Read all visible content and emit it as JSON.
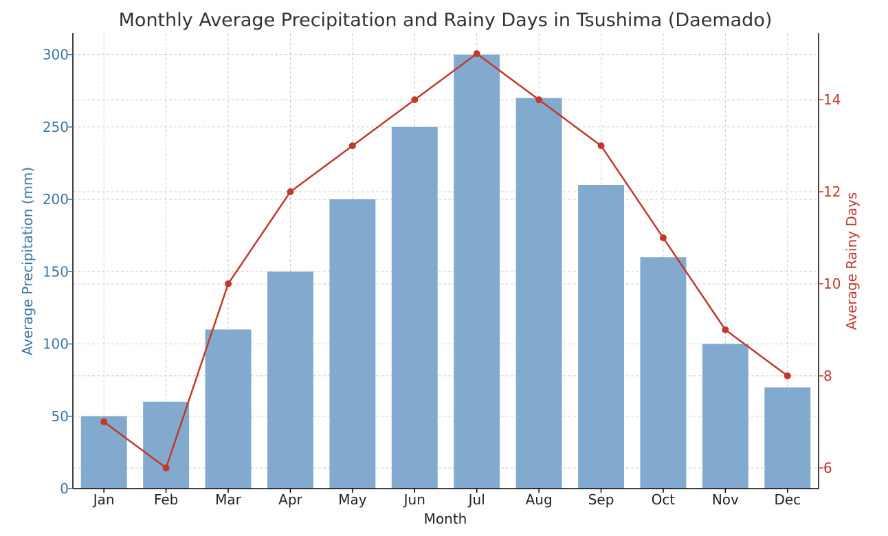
{
  "chart_data": {
    "type": "bar",
    "title": "Monthly Average Precipitation and Rainy Days in Tsushima (Daemado)",
    "xlabel": "Month",
    "ylabel": "Average Precipitation (mm)",
    "y2label": "Average Rainy Days",
    "categories": [
      "Jan",
      "Feb",
      "Mar",
      "Apr",
      "May",
      "Jun",
      "Jul",
      "Aug",
      "Sep",
      "Oct",
      "Nov",
      "Dec"
    ],
    "ylim": [
      0,
      315
    ],
    "y2lim": [
      5.55,
      15.45
    ],
    "yticks": [
      0,
      50,
      100,
      150,
      200,
      250,
      300
    ],
    "y2ticks": [
      6,
      8,
      10,
      12,
      14
    ],
    "grid": true,
    "series": [
      {
        "name": "Average Precipitation (mm)",
        "type": "bar",
        "axis": "left",
        "color": "#82aace",
        "values": [
          50,
          60,
          110,
          150,
          200,
          250,
          300,
          270,
          210,
          160,
          100,
          70
        ]
      },
      {
        "name": "Average Rainy Days",
        "type": "line",
        "axis": "right",
        "color": "#c0392b",
        "values": [
          7,
          6,
          10,
          12,
          13,
          14,
          15,
          14,
          13,
          11,
          9,
          8
        ]
      }
    ],
    "colors": {
      "left_axis": "#3a76a8",
      "right_axis": "#c0392b",
      "grid": "#cccccc",
      "axis_line": "#000000"
    }
  }
}
